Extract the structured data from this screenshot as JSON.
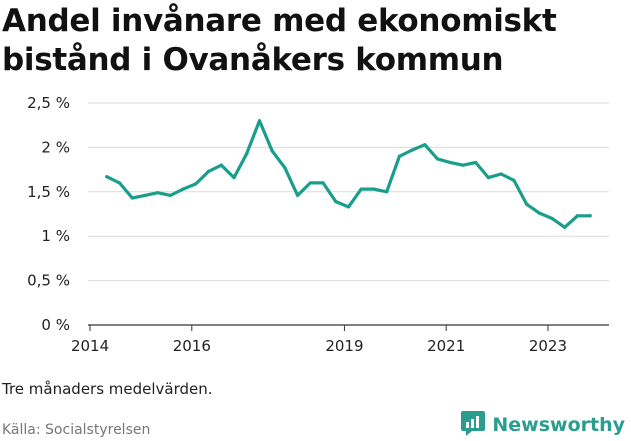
{
  "title": "Andel invånare med ekonomiskt bistånd i Ovanåkers kommun",
  "note": "Tre månaders medelvärden.",
  "source": "Källa: Socialstyrelsen",
  "brand": {
    "name": "Newsworthy",
    "icon": "newsworthy-logo-icon",
    "color": "#2a9d8f"
  },
  "chart_data": {
    "type": "line",
    "title": "Andel invånare med ekonomiskt bistånd i Ovanåkers kommun",
    "xlabel": "",
    "ylabel": "",
    "x_ticks": [
      "2014",
      "2016",
      "2019",
      "2021",
      "2023"
    ],
    "x_tick_values": [
      2014.0,
      2016.0,
      2019.0,
      2021.0,
      2023.0
    ],
    "y_ticks": [
      "0 %",
      "0,5 %",
      "1 %",
      "1,5 %",
      "2 %",
      "2,5 %"
    ],
    "y_tick_values": [
      0,
      0.5,
      1,
      1.5,
      2,
      2.5
    ],
    "ylim": [
      0,
      2.5
    ],
    "xlim": [
      2013.96,
      2024.2
    ],
    "grid": true,
    "line_color": "#1a9e8c",
    "series": [
      {
        "x": [
          2014.33,
          2014.58,
          2014.83,
          2015.08,
          2015.33,
          2015.58,
          2015.83,
          2016.08,
          2016.33,
          2016.58,
          2016.83,
          2017.08,
          2017.33,
          2017.58,
          2017.83,
          2018.08,
          2018.33,
          2018.58,
          2018.83,
          2019.08,
          2019.33,
          2019.58,
          2019.83,
          2020.08,
          2020.33,
          2020.58,
          2020.83,
          2021.08,
          2021.33,
          2021.58,
          2021.83,
          2022.08,
          2022.33,
          2022.58,
          2022.83,
          2023.08,
          2023.33,
          2023.58,
          2023.83
        ],
        "y": [
          1.67,
          1.6,
          1.43,
          1.46,
          1.49,
          1.46,
          1.53,
          1.59,
          1.73,
          1.8,
          1.66,
          1.93,
          2.3,
          1.96,
          1.77,
          1.46,
          1.6,
          1.6,
          1.39,
          1.33,
          1.53,
          1.53,
          1.5,
          1.9,
          1.97,
          2.03,
          1.87,
          1.83,
          1.8,
          1.83,
          1.66,
          1.7,
          1.63,
          1.36,
          1.26,
          1.2,
          1.1,
          1.23,
          1.23
        ]
      }
    ]
  }
}
